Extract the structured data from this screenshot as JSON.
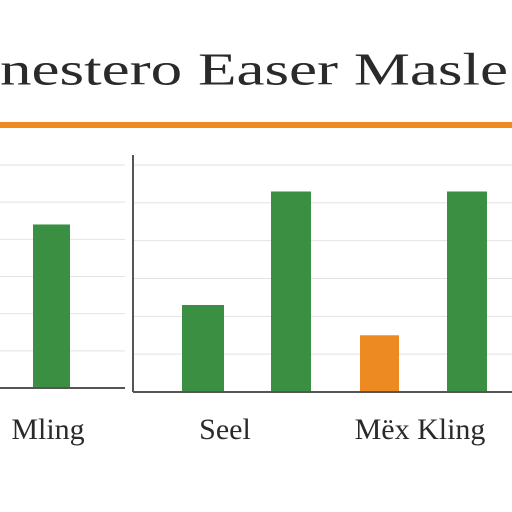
{
  "chart_data": {
    "type": "bar",
    "title": "nestero Easer Masle",
    "categories": [
      "Mling",
      null,
      "Seel",
      null,
      "Mëx Kling"
    ],
    "values": [
      4.4,
      2.3,
      5.3,
      1.5,
      5.3
    ],
    "colors": [
      "#3a8f43",
      "#3a8f43",
      "#3a8f43",
      "#ee8a22",
      "#3a8f43"
    ],
    "accent_color": "#ee8a22",
    "ylim": [
      0,
      6
    ],
    "yticks": [
      0,
      1,
      2,
      3,
      4,
      5,
      6
    ],
    "grid": true
  }
}
